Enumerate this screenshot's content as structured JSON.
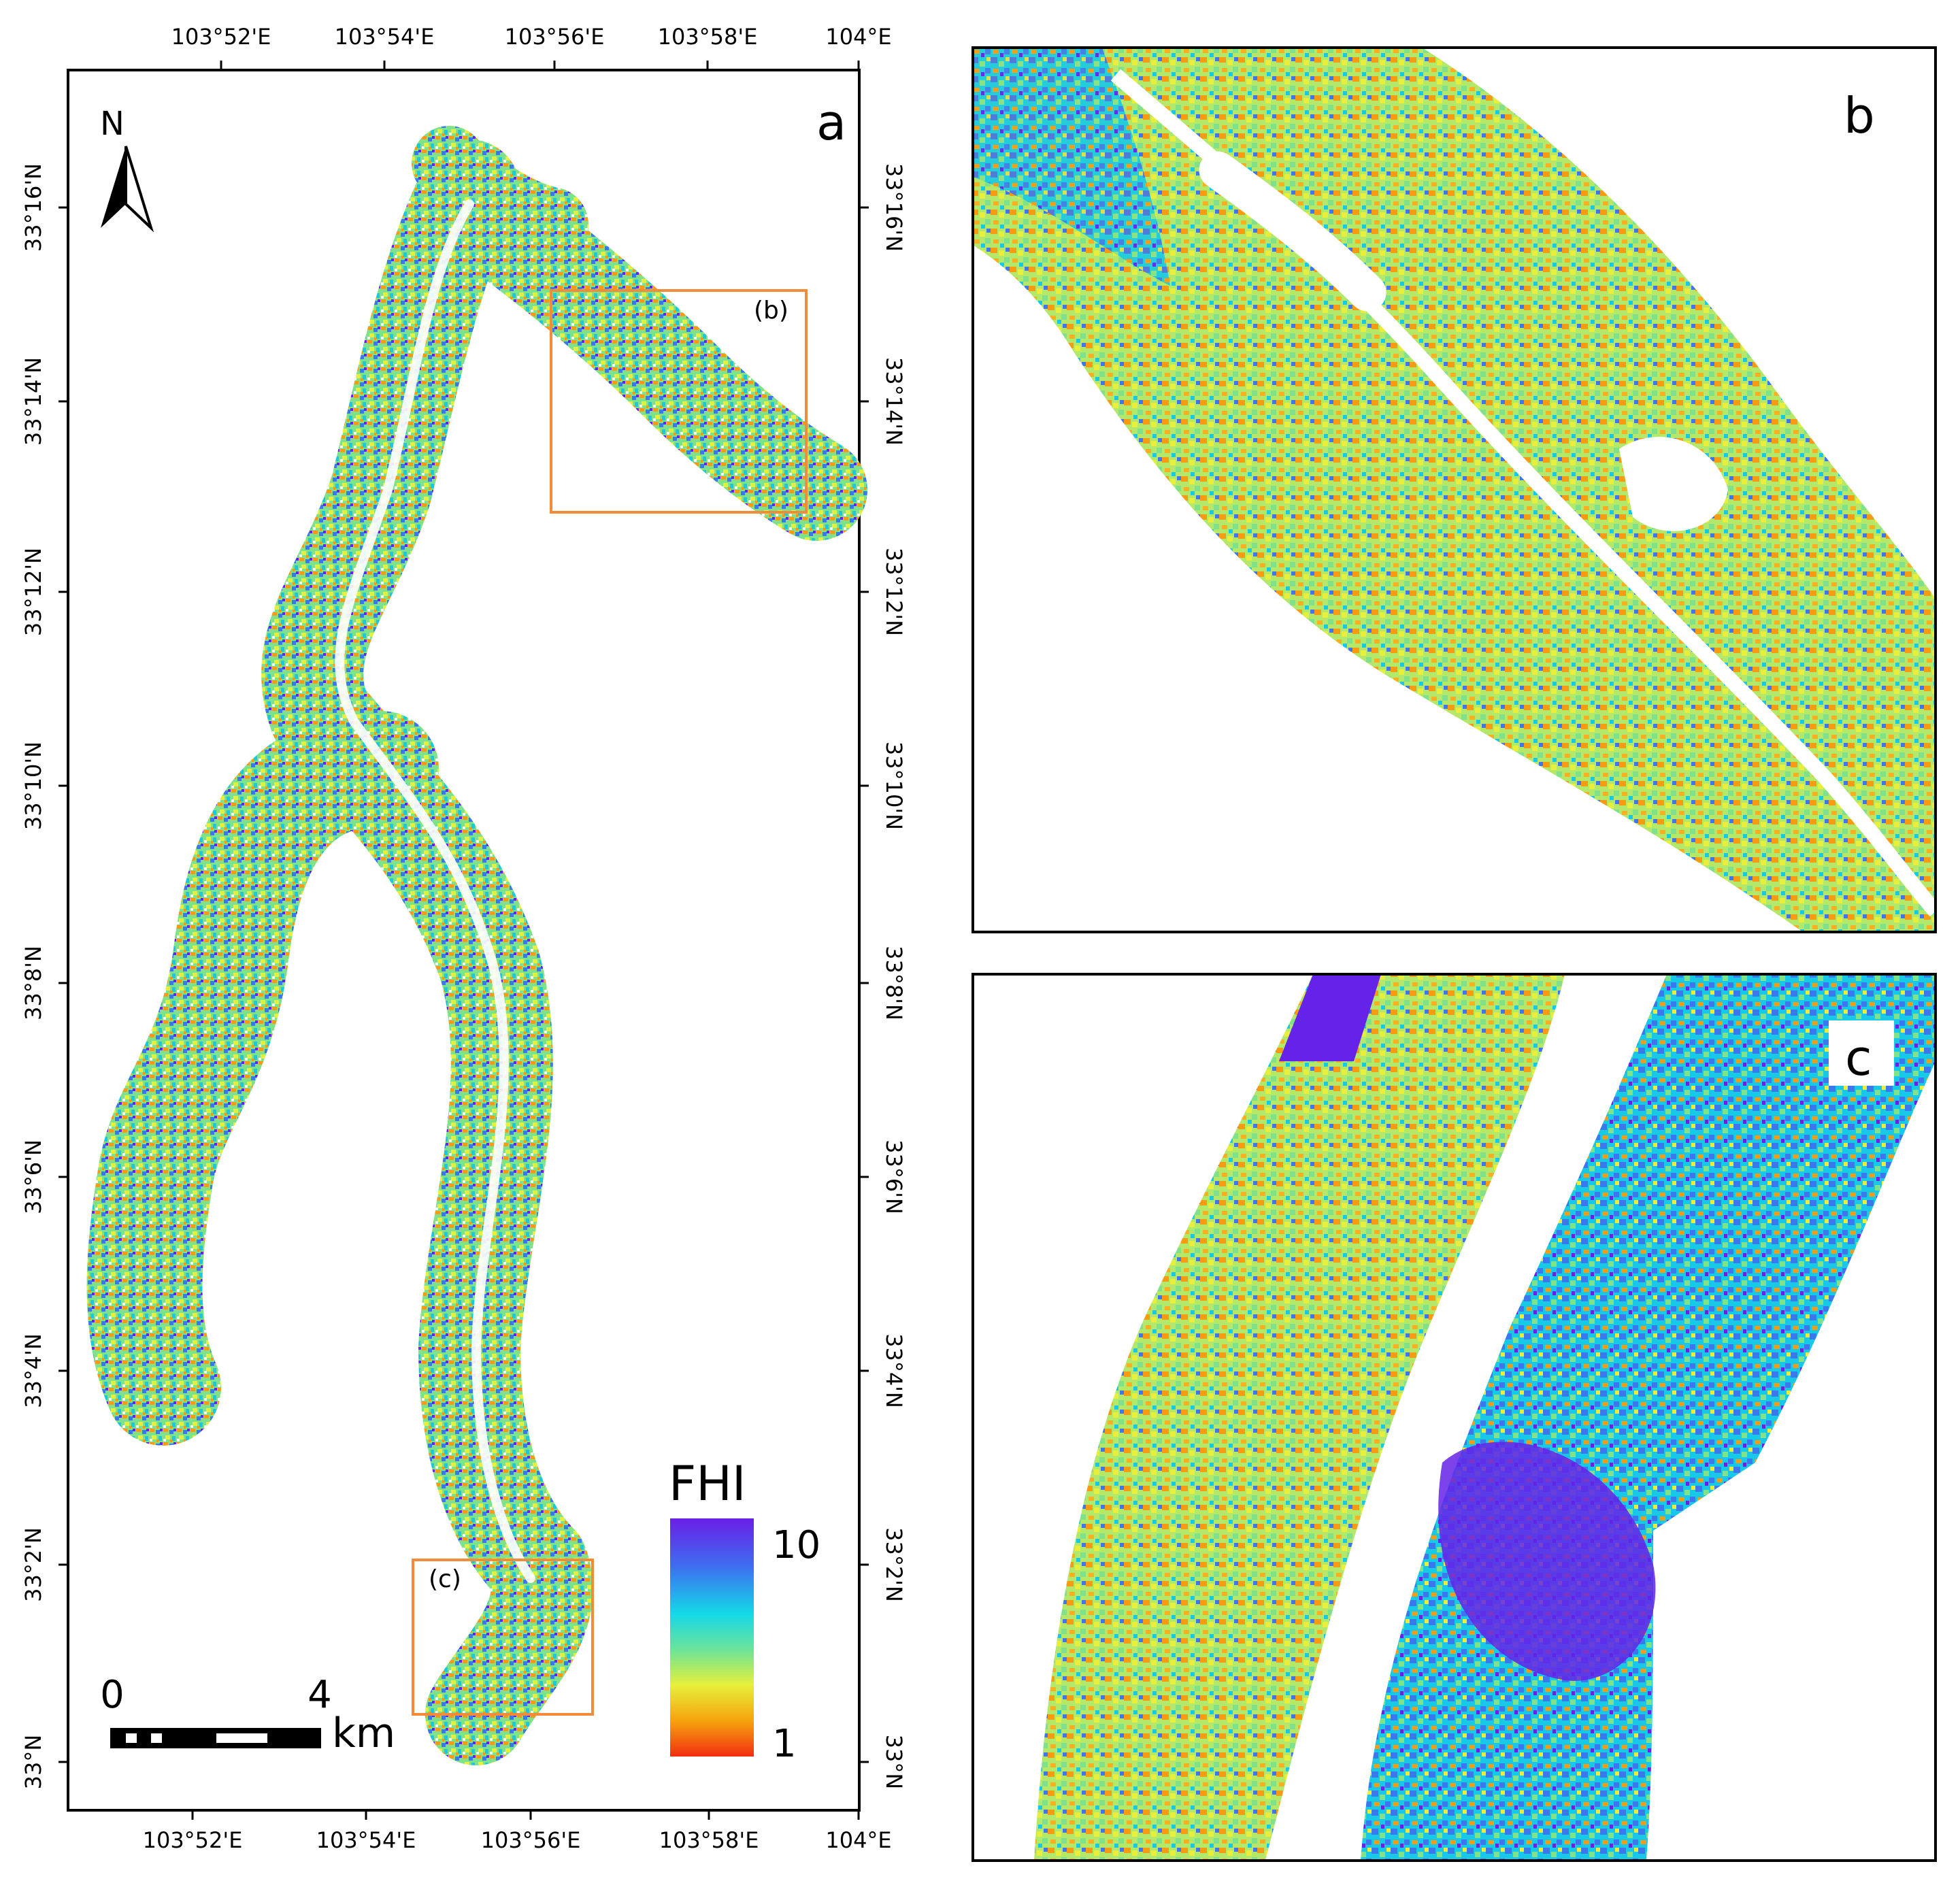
{
  "panel_a": {
    "label": "a",
    "north_label": "N",
    "inset_b_label": "(b)",
    "inset_c_label": "(c)",
    "x_ticks": [
      "103°52'E",
      "103°54'E",
      "103°56'E",
      "103°58'E",
      "104°E"
    ],
    "y_ticks": [
      "33°16'N",
      "33°14'N",
      "33°12'N",
      "33°10'N",
      "33°8'N",
      "33°6'N",
      "33°4'N",
      "33°2'N",
      "33°N"
    ],
    "scale_bar": {
      "start_label": "0",
      "end_label": "4",
      "unit": "km"
    },
    "legend": {
      "title": "FHI",
      "max_label": "10",
      "min_label": "1",
      "colors": [
        "#6a1fe6",
        "#3f6df0",
        "#14d9e8",
        "#6be39a",
        "#e6f03a",
        "#f6a30c",
        "#f22d12"
      ]
    }
  },
  "panel_b": {
    "label": "b"
  },
  "panel_c": {
    "label": "c"
  },
  "fhi_colors": {
    "violet": "#6522e8",
    "blue": "#3b78ee",
    "cyan": "#17c9e6",
    "green": "#7fe18a",
    "yellow": "#e8ee3c",
    "orange": "#f79b12"
  }
}
